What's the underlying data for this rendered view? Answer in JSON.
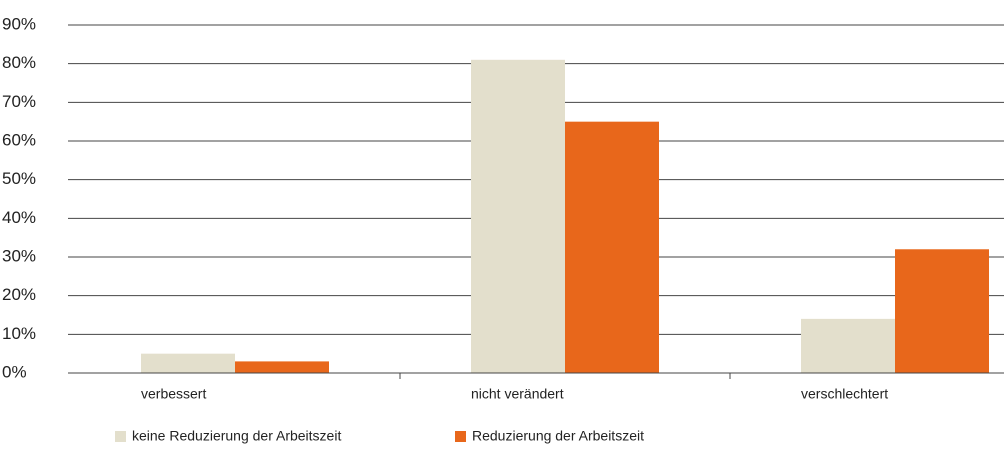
{
  "chart_data": {
    "type": "bar",
    "categories": [
      "verbessert",
      "nicht verändert",
      "verschlechtert"
    ],
    "series": [
      {
        "name": "keine Reduzierung der Arbeitszeit",
        "color": "#e3dfcc",
        "values": [
          5,
          81,
          14
        ]
      },
      {
        "name": "Reduzierung der Arbeitszeit",
        "color": "#e8671b",
        "values": [
          3,
          65,
          32
        ]
      }
    ],
    "ylim": [
      0,
      90
    ],
    "yticks": [
      {
        "value": 0,
        "label": "0%"
      },
      {
        "value": 10,
        "label": "10%"
      },
      {
        "value": 20,
        "label": "20%"
      },
      {
        "value": 30,
        "label": "30%"
      },
      {
        "value": 40,
        "label": "40%"
      },
      {
        "value": 50,
        "label": "50%"
      },
      {
        "value": 60,
        "label": "60%"
      },
      {
        "value": 70,
        "label": "70%"
      },
      {
        "value": 80,
        "label": "80%"
      },
      {
        "value": 90,
        "label": "90%"
      }
    ],
    "grid": true,
    "legend": "bottom"
  }
}
